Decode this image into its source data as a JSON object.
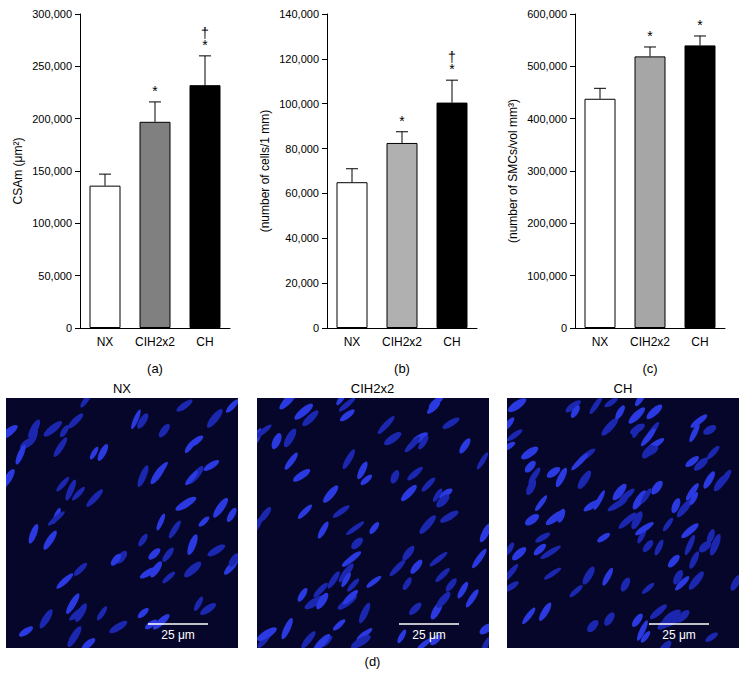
{
  "chart_data": [
    {
      "type": "bar",
      "panel_label": "(a)",
      "y_label": "CSAm (μm²)",
      "categories": [
        "NX",
        "CIH2x2",
        "CH"
      ],
      "values": [
        136000,
        197000,
        232000
      ],
      "errors": [
        11000,
        19000,
        28000
      ],
      "colors": [
        "#ffffff",
        "#808080",
        "#000000"
      ],
      "significance": [
        null,
        [
          "*"
        ],
        [
          "†",
          "*"
        ]
      ],
      "ylim": [
        0,
        300000
      ],
      "yticks": [
        0,
        {
          "value": 50000,
          "label": "50,000"
        },
        {
          "value": 100000,
          "label": "100,000"
        },
        {
          "value": 150000,
          "label": "150,000"
        },
        {
          "value": 200000,
          "label": "200,000"
        },
        {
          "value": 250000,
          "label": "250,000"
        },
        {
          "value": 300000,
          "label": "300,000"
        }
      ],
      "grid": false
    },
    {
      "type": "bar",
      "panel_label": "(b)",
      "y_label": "(number of cells/1 mm)",
      "categories": [
        "NX",
        "CIH2x2",
        "CH"
      ],
      "values": [
        65000,
        82500,
        100500
      ],
      "errors": [
        6000,
        5000,
        10000
      ],
      "colors": [
        "#ffffff",
        "#b0b0b0",
        "#000000"
      ],
      "significance": [
        null,
        [
          "*"
        ],
        [
          "†",
          "*"
        ]
      ],
      "ylim": [
        0,
        140000
      ],
      "yticks": [
        0,
        {
          "value": 20000,
          "label": "20,000"
        },
        {
          "value": 40000,
          "label": "40,000"
        },
        {
          "value": 60000,
          "label": "60,000"
        },
        {
          "value": 80000,
          "label": "80,000"
        },
        {
          "value": 100000,
          "label": "100,000"
        },
        {
          "value": 120000,
          "label": "120,000"
        },
        {
          "value": 140000,
          "label": "140,000"
        }
      ],
      "grid": false
    },
    {
      "type": "bar",
      "panel_label": "(c)",
      "y_label": "(number of SMCs/vol mm³)",
      "categories": [
        "NX",
        "CIH2x2",
        "CH"
      ],
      "values": [
        438000,
        519000,
        540000
      ],
      "errors": [
        20000,
        18000,
        18000
      ],
      "colors": [
        "#ffffff",
        "#a6a6a6",
        "#000000"
      ],
      "significance": [
        null,
        [
          "*"
        ],
        [
          "*"
        ]
      ],
      "ylim": [
        0,
        600000
      ],
      "yticks": [
        0,
        {
          "value": 100000,
          "label": "100,000"
        },
        {
          "value": 200000,
          "label": "200,000"
        },
        {
          "value": 300000,
          "label": "300,000"
        },
        {
          "value": 400000,
          "label": "400,000"
        },
        {
          "value": 500000,
          "label": "500,000"
        },
        {
          "value": 600000,
          "label": "600,000"
        }
      ],
      "grid": false
    }
  ],
  "image_panel": {
    "label": "(d)",
    "panels": [
      {
        "title": "NX",
        "scale_bar": "25 μm"
      },
      {
        "title": "CIH2x2",
        "scale_bar": "25 μm"
      },
      {
        "title": "CH",
        "scale_bar": "25 μm"
      }
    ]
  }
}
